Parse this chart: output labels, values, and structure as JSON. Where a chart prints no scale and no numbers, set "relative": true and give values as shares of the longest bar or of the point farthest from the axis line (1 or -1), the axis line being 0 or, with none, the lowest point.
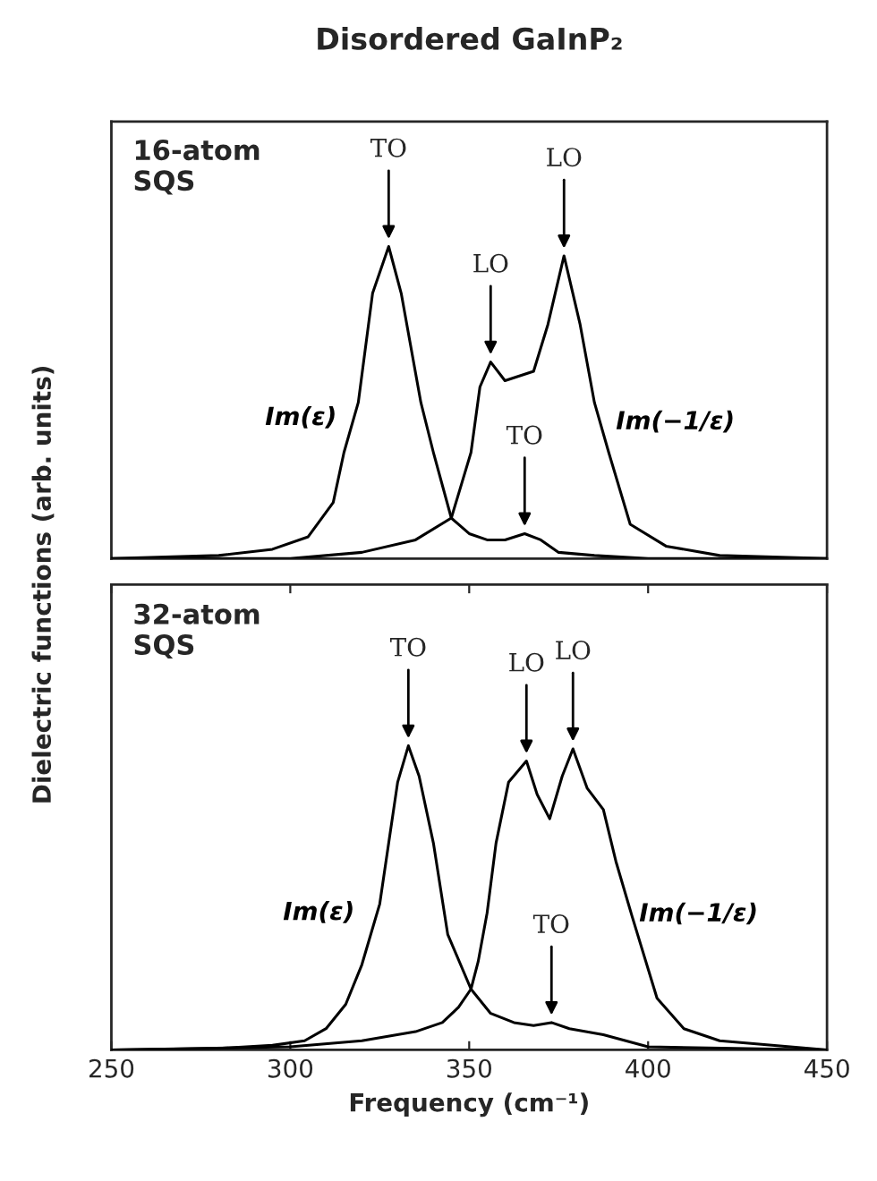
{
  "chart_data": [
    {
      "type": "line",
      "title": "Disordered GaInP₂",
      "ylabel": "Dielectric functions (arb. units)",
      "relative": true,
      "xlim": [
        250,
        450
      ],
      "tick_labels": false,
      "annotations": [
        "16-atom\nSQS",
        {
          "text": "TO",
          "x": 327.5,
          "y": 1.0
        },
        {
          "text": "LO",
          "x": 356,
          "y": 0.63
        },
        {
          "text": "LO",
          "x": 376.5,
          "y": 0.97
        },
        {
          "text": "TO",
          "x": 365.5,
          "y": 0.08
        }
      ],
      "series": [
        {
          "name": "Im(ε)",
          "color": "#000000",
          "x": [
            250,
            280,
            295,
            305,
            312,
            315,
            319,
            323,
            327.5,
            331,
            336.5,
            340,
            345,
            350,
            355,
            360,
            365.5,
            370,
            375,
            385,
            400,
            450
          ],
          "values": [
            0.0,
            0.01,
            0.03,
            0.07,
            0.18,
            0.34,
            0.5,
            0.85,
            1.0,
            0.85,
            0.5,
            0.34,
            0.13,
            0.08,
            0.06,
            0.06,
            0.08,
            0.06,
            0.02,
            0.01,
            0.0,
            0.0
          ]
        },
        {
          "name": "Im(−1/ε)",
          "color": "#000000",
          "x": [
            250,
            300,
            320,
            335,
            345,
            350.5,
            353,
            356,
            360,
            368,
            372,
            376.5,
            381,
            385,
            389,
            395,
            405,
            420,
            450
          ],
          "values": [
            0.0,
            0.0,
            0.02,
            0.06,
            0.13,
            0.34,
            0.55,
            0.63,
            0.57,
            0.6,
            0.75,
            0.97,
            0.75,
            0.5,
            0.34,
            0.11,
            0.04,
            0.01,
            0.0
          ]
        }
      ]
    },
    {
      "type": "line",
      "xlabel": "Frequency (cm⁻¹)",
      "relative": true,
      "xlim": [
        250,
        450
      ],
      "xticks": [
        250,
        300,
        350,
        400,
        450
      ],
      "tick_labels": "x",
      "annotations": [
        "32-atom\nSQS",
        {
          "text": "TO",
          "x": 333,
          "y": 1.0
        },
        {
          "text": "LO",
          "x": 366,
          "y": 0.95
        },
        {
          "text": "LO",
          "x": 379,
          "y": 0.99
        },
        {
          "text": "TO",
          "x": 373,
          "y": 0.09
        }
      ],
      "series": [
        {
          "name": "Im(ε)",
          "color": "#000000",
          "x": [
            250,
            280,
            295,
            304,
            310,
            315.5,
            320,
            325,
            327.5,
            330,
            333,
            336,
            340,
            344,
            350.5,
            356,
            362.5,
            368,
            373,
            378,
            387.5,
            400,
            450
          ],
          "values": [
            0.0,
            0.005,
            0.015,
            0.03,
            0.07,
            0.15,
            0.28,
            0.48,
            0.68,
            0.88,
            1.0,
            0.9,
            0.68,
            0.38,
            0.2,
            0.12,
            0.09,
            0.08,
            0.09,
            0.07,
            0.05,
            0.01,
            0.0
          ]
        },
        {
          "name": "Im(−1/ε)",
          "color": "#000000",
          "x": [
            250,
            300,
            320,
            335,
            342.5,
            347,
            350.5,
            352.5,
            355,
            357.5,
            361,
            366,
            369,
            372.5,
            376,
            379,
            383,
            387.5,
            391,
            395.5,
            402.5,
            410,
            420,
            450
          ],
          "values": [
            0.0,
            0.01,
            0.03,
            0.06,
            0.09,
            0.14,
            0.2,
            0.29,
            0.45,
            0.68,
            0.88,
            0.95,
            0.84,
            0.76,
            0.9,
            0.99,
            0.86,
            0.79,
            0.62,
            0.44,
            0.17,
            0.07,
            0.03,
            0.0
          ]
        }
      ]
    }
  ]
}
